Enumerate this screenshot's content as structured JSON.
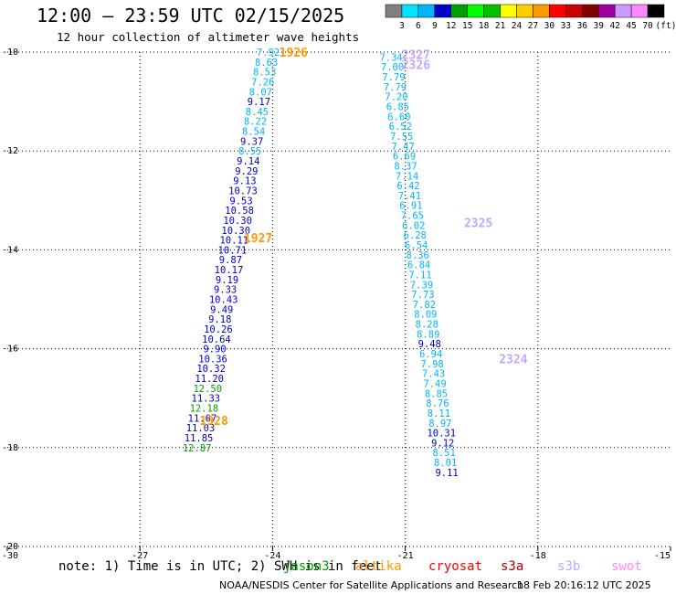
{
  "header": {
    "title": "12:00 – 23:59 UTC 02/15/2025",
    "subtitle": "12 hour collection of altimeter wave heights"
  },
  "color_scale": {
    "colors": [
      "#808080",
      "#00e5ff",
      "#00b4ff",
      "#0000cd",
      "#00a000",
      "#00ff00",
      "#00c000",
      "#ffff00",
      "#ffcc00",
      "#ff9900",
      "#ff0000",
      "#cc0000",
      "#800000",
      "#a000a0",
      "#cc99ff",
      "#ff88ff",
      "#000000"
    ],
    "labels": [
      "3",
      "6",
      "9",
      "12",
      "15",
      "18",
      "21",
      "24",
      "27",
      "30",
      "33",
      "36",
      "39",
      "42",
      "45",
      "70"
    ],
    "unit": "(ft)"
  },
  "chart_data": {
    "type": "scatter",
    "title": "12:00 – 23:59 UTC 02/15/2025",
    "subtitle": "12 hour collection of altimeter wave heights",
    "xlim": [
      -30,
      -15
    ],
    "ylim": [
      -20,
      -10
    ],
    "x_ticks": [
      "-30",
      "-27",
      "-24",
      "-21",
      "-18",
      "-15"
    ],
    "y_ticks": [
      "-10",
      "-12",
      "-14",
      "-16",
      "-18",
      "-20"
    ],
    "grid": true,
    "unit": "ft",
    "color_bins": [
      3,
      6,
      9,
      12,
      15,
      18,
      21,
      24,
      27,
      30,
      33,
      36,
      39,
      42,
      45,
      70
    ],
    "tracks": [
      {
        "points": [
          {
            "lon": -24.1,
            "lat": -10.0,
            "swh": "7.92"
          },
          {
            "lon": -24.14,
            "lat": -10.2,
            "swh": "8.63"
          },
          {
            "lon": -24.18,
            "lat": -10.4,
            "swh": "8.53"
          },
          {
            "lon": -24.22,
            "lat": -10.6,
            "swh": "7.26"
          },
          {
            "lon": -24.27,
            "lat": -10.8,
            "swh": "8.07"
          },
          {
            "lon": -24.31,
            "lat": -11.0,
            "swh": "9.17"
          },
          {
            "lon": -24.35,
            "lat": -11.2,
            "swh": "8.45"
          },
          {
            "lon": -24.39,
            "lat": -11.4,
            "swh": "8.22"
          },
          {
            "lon": -24.43,
            "lat": -11.6,
            "swh": "8.54"
          },
          {
            "lon": -24.47,
            "lat": -11.8,
            "swh": "9.37"
          },
          {
            "lon": -24.51,
            "lat": -12.0,
            "swh": "8.55"
          },
          {
            "lon": -24.55,
            "lat": -12.2,
            "swh": "9.14"
          },
          {
            "lon": -24.59,
            "lat": -12.4,
            "swh": "9.29"
          },
          {
            "lon": -24.63,
            "lat": -12.6,
            "swh": "9.13"
          },
          {
            "lon": -24.67,
            "lat": -12.8,
            "swh": "10.73"
          },
          {
            "lon": -24.71,
            "lat": -13.0,
            "swh": "9.53"
          },
          {
            "lon": -24.75,
            "lat": -13.2,
            "swh": "10.58"
          },
          {
            "lon": -24.79,
            "lat": -13.4,
            "swh": "10.30"
          },
          {
            "lon": -24.83,
            "lat": -13.6,
            "swh": "10.30"
          },
          {
            "lon": -24.87,
            "lat": -13.8,
            "swh": "10.11"
          },
          {
            "lon": -24.91,
            "lat": -14.0,
            "swh": "10.71"
          },
          {
            "lon": -24.95,
            "lat": -14.2,
            "swh": "9.87"
          },
          {
            "lon": -24.99,
            "lat": -14.4,
            "swh": "10.17"
          },
          {
            "lon": -25.03,
            "lat": -14.6,
            "swh": "9.19"
          },
          {
            "lon": -25.07,
            "lat": -14.8,
            "swh": "9.33"
          },
          {
            "lon": -25.11,
            "lat": -15.0,
            "swh": "10.43"
          },
          {
            "lon": -25.15,
            "lat": -15.2,
            "swh": "9.49"
          },
          {
            "lon": -25.19,
            "lat": -15.4,
            "swh": "9.18"
          },
          {
            "lon": -25.23,
            "lat": -15.6,
            "swh": "10.26"
          },
          {
            "lon": -25.27,
            "lat": -15.8,
            "swh": "10.64"
          },
          {
            "lon": -25.31,
            "lat": -16.0,
            "swh": "9.90"
          },
          {
            "lon": -25.35,
            "lat": -16.2,
            "swh": "10.36"
          },
          {
            "lon": -25.39,
            "lat": -16.4,
            "swh": "10.32"
          },
          {
            "lon": -25.43,
            "lat": -16.6,
            "swh": "11.20"
          },
          {
            "lon": -25.47,
            "lat": -16.8,
            "swh": "12.50"
          },
          {
            "lon": -25.51,
            "lat": -17.0,
            "swh": "11.33"
          },
          {
            "lon": -25.55,
            "lat": -17.2,
            "swh": "12.18"
          },
          {
            "lon": -25.59,
            "lat": -17.4,
            "swh": "11.67"
          },
          {
            "lon": -25.63,
            "lat": -17.6,
            "swh": "11.03"
          },
          {
            "lon": -25.67,
            "lat": -17.8,
            "swh": "11.85"
          },
          {
            "lon": -25.71,
            "lat": -18.0,
            "swh": "12.87"
          }
        ],
        "pass_labels": [
          {
            "text": "1926",
            "lon": -23.85,
            "lat": -10.0,
            "color": "#ff9900"
          },
          {
            "text": "1927",
            "lon": -24.65,
            "lat": -13.75,
            "color": "#ff9900"
          },
          {
            "text": "1928",
            "lon": -25.65,
            "lat": -17.45,
            "color": "#ff9900"
          }
        ]
      },
      {
        "points": [
          {
            "lon": -21.32,
            "lat": -10.1,
            "swh": "7.34"
          },
          {
            "lon": -21.29,
            "lat": -10.3,
            "swh": "7.00"
          },
          {
            "lon": -21.26,
            "lat": -10.5,
            "swh": "7.79"
          },
          {
            "lon": -21.23,
            "lat": -10.7,
            "swh": "7.79"
          },
          {
            "lon": -21.2,
            "lat": -10.9,
            "swh": "7.20"
          },
          {
            "lon": -21.17,
            "lat": -11.1,
            "swh": "6.85"
          },
          {
            "lon": -21.14,
            "lat": -11.3,
            "swh": "6.60"
          },
          {
            "lon": -21.11,
            "lat": -11.5,
            "swh": "6.52"
          },
          {
            "lon": -21.08,
            "lat": -11.7,
            "swh": "7.55"
          },
          {
            "lon": -21.05,
            "lat": -11.9,
            "swh": "7.47"
          },
          {
            "lon": -21.02,
            "lat": -12.1,
            "swh": "6.69"
          },
          {
            "lon": -20.99,
            "lat": -12.3,
            "swh": "8.37"
          },
          {
            "lon": -20.96,
            "lat": -12.5,
            "swh": "7.14"
          },
          {
            "lon": -20.93,
            "lat": -12.7,
            "swh": "6.42"
          },
          {
            "lon": -20.9,
            "lat": -12.9,
            "swh": "7.41"
          },
          {
            "lon": -20.87,
            "lat": -13.1,
            "swh": "6.91"
          },
          {
            "lon": -20.84,
            "lat": -13.3,
            "swh": "7.65"
          },
          {
            "lon": -20.81,
            "lat": -13.5,
            "swh": "6.02"
          },
          {
            "lon": -20.78,
            "lat": -13.7,
            "swh": "6.28"
          },
          {
            "lon": -20.75,
            "lat": -13.9,
            "swh": "6.54"
          },
          {
            "lon": -20.72,
            "lat": -14.1,
            "swh": "8.36"
          },
          {
            "lon": -20.69,
            "lat": -14.3,
            "swh": "6.84"
          },
          {
            "lon": -20.66,
            "lat": -14.5,
            "swh": "7.11"
          },
          {
            "lon": -20.63,
            "lat": -14.7,
            "swh": "7.39"
          },
          {
            "lon": -20.6,
            "lat": -14.9,
            "swh": "7.73"
          },
          {
            "lon": -20.57,
            "lat": -15.1,
            "swh": "7.82"
          },
          {
            "lon": -20.54,
            "lat": -15.3,
            "swh": "8.09"
          },
          {
            "lon": -20.51,
            "lat": -15.5,
            "swh": "8.28"
          },
          {
            "lon": -20.48,
            "lat": -15.7,
            "swh": "8.89"
          },
          {
            "lon": -20.45,
            "lat": -15.9,
            "swh": "9.48"
          },
          {
            "lon": -20.42,
            "lat": -16.1,
            "swh": "6.94"
          },
          {
            "lon": -20.39,
            "lat": -16.3,
            "swh": "7.98"
          },
          {
            "lon": -20.36,
            "lat": -16.5,
            "swh": "7.43"
          },
          {
            "lon": -20.33,
            "lat": -16.7,
            "swh": "7.49"
          },
          {
            "lon": -20.3,
            "lat": -16.9,
            "swh": "8.85"
          },
          {
            "lon": -20.27,
            "lat": -17.1,
            "swh": "8.76"
          },
          {
            "lon": -20.24,
            "lat": -17.3,
            "swh": "8.11"
          },
          {
            "lon": -20.21,
            "lat": -17.5,
            "swh": "8.97"
          },
          {
            "lon": -20.18,
            "lat": -17.7,
            "swh": "10.31"
          },
          {
            "lon": -20.15,
            "lat": -17.9,
            "swh": "9.12"
          },
          {
            "lon": -20.12,
            "lat": -18.1,
            "swh": "8.51"
          },
          {
            "lon": -20.09,
            "lat": -18.3,
            "swh": "8.01"
          },
          {
            "lon": -20.06,
            "lat": -18.5,
            "swh": "9.11"
          }
        ],
        "pass_labels": [
          {
            "text": "2327",
            "lon": -21.08,
            "lat": -10.05,
            "color": "#c0a8ff"
          },
          {
            "text": "2326",
            "lon": -21.08,
            "lat": -10.25,
            "color": "#c0a8ff"
          },
          {
            "text": "2325",
            "lon": -19.67,
            "lat": -13.45,
            "color": "#c0a8ff"
          },
          {
            "text": "2324",
            "lon": -18.88,
            "lat": -16.2,
            "color": "#c0a8ff"
          }
        ]
      }
    ]
  },
  "note": "note: 1) Time is in UTC; 2) SWH is in feet",
  "satellites": [
    {
      "name": "jason3",
      "color": "#00a000"
    },
    {
      "name": "altika",
      "color": "#ff9900"
    },
    {
      "name": "cryosat",
      "color": "#ff0000"
    },
    {
      "name": "s3a",
      "color": "#b00000"
    },
    {
      "name": "s3b",
      "color": "#c0a8ff"
    },
    {
      "name": "swot",
      "color": "#ff88ff"
    }
  ],
  "footer": {
    "credit": "NOAA/NESDIS Center for Satellite Applications and Research",
    "timestamp": "18 Feb 20:16:12 UTC 2025"
  }
}
